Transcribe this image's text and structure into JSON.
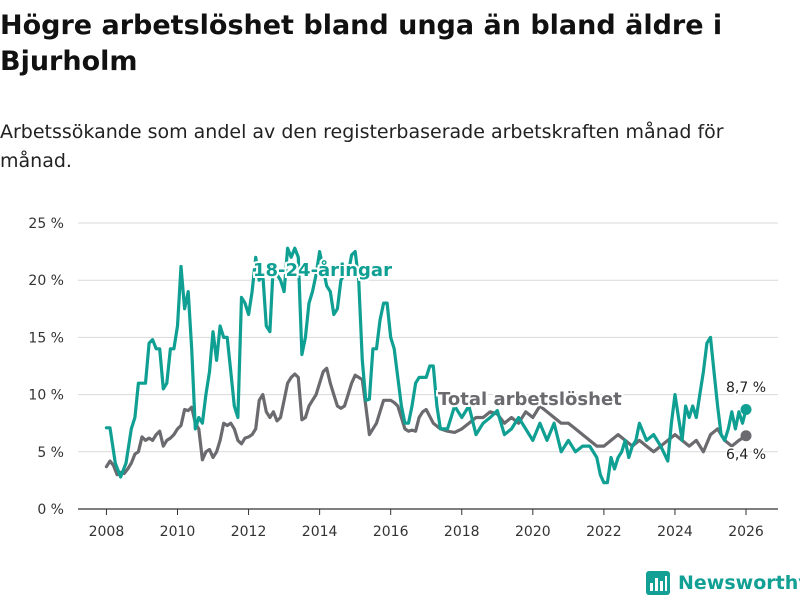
{
  "title": "Högre arbetslöshet bland unga än bland äldre i Bjurholm",
  "subtitle": "Arbetssökande som andel av den registerbaserade arbetskraften månad för månad.",
  "brand": {
    "name": "Newsworthy",
    "icon": "newsworthy-bar-chart-logo"
  },
  "colors": {
    "youth": "#0fa093",
    "total": "#6b6a6f",
    "grid": "#d9d9d9"
  },
  "chart_data": {
    "type": "line",
    "title": "Högre arbetslöshet bland unga än bland äldre i Bjurholm",
    "xlabel": "",
    "ylabel": "",
    "xlim": [
      2007.2,
      2026.9
    ],
    "ylim": [
      0,
      25
    ],
    "y_ticks": [
      0,
      5,
      10,
      15,
      20,
      25
    ],
    "y_tick_labels": [
      "0 %",
      "5 %",
      "10 %",
      "15 %",
      "20 %",
      "25 %"
    ],
    "x_ticks": [
      2008,
      2010,
      2012,
      2014,
      2016,
      2018,
      2020,
      2022,
      2024,
      2026
    ],
    "x_tick_labels": [
      "2008",
      "2010",
      "2012",
      "2014",
      "2016",
      "2018",
      "2020",
      "2022",
      "2024",
      "2026"
    ],
    "grid": "horizontal",
    "series": [
      {
        "name": "18-24-åringar",
        "label": "18-24-åringar",
        "color_key": "youth",
        "x": [
          2008.0,
          2008.1,
          2008.25,
          2008.4,
          2008.55,
          2008.7,
          2008.8,
          2008.9,
          2009.0,
          2009.1,
          2009.2,
          2009.3,
          2009.4,
          2009.5,
          2009.6,
          2009.7,
          2009.8,
          2009.9,
          2010.0,
          2010.1,
          2010.2,
          2010.3,
          2010.4,
          2010.5,
          2010.6,
          2010.7,
          2010.8,
          2010.9,
          2011.0,
          2011.1,
          2011.2,
          2011.3,
          2011.4,
          2011.5,
          2011.6,
          2011.7,
          2011.8,
          2011.9,
          2012.0,
          2012.1,
          2012.2,
          2012.3,
          2012.4,
          2012.5,
          2012.6,
          2012.7,
          2012.8,
          2012.9,
          2013.0,
          2013.1,
          2013.2,
          2013.3,
          2013.4,
          2013.5,
          2013.6,
          2013.7,
          2013.8,
          2013.9,
          2014.0,
          2014.1,
          2014.2,
          2014.3,
          2014.4,
          2014.5,
          2014.6,
          2014.7,
          2014.8,
          2014.9,
          2015.0,
          2015.1,
          2015.2,
          2015.3,
          2015.4,
          2015.5,
          2015.6,
          2015.7,
          2015.8,
          2015.9,
          2016.0,
          2016.1,
          2016.2,
          2016.3,
          2016.4,
          2016.5,
          2016.6,
          2016.7,
          2016.8,
          2016.9,
          2017.0,
          2017.1,
          2017.2,
          2017.3,
          2017.4,
          2017.5,
          2017.6,
          2017.7,
          2017.8,
          2017.9,
          2018.0,
          2018.2,
          2018.4,
          2018.6,
          2018.8,
          2019.0,
          2019.2,
          2019.4,
          2019.6,
          2019.8,
          2020.0,
          2020.2,
          2020.4,
          2020.6,
          2020.8,
          2021.0,
          2021.2,
          2021.4,
          2021.6,
          2021.8,
          2021.9,
          2022.0,
          2022.1,
          2022.2,
          2022.3,
          2022.4,
          2022.5,
          2022.6,
          2022.7,
          2022.8,
          2022.9,
          2023.0,
          2023.2,
          2023.4,
          2023.6,
          2023.8,
          2023.9,
          2024.0,
          2024.1,
          2024.2,
          2024.3,
          2024.4,
          2024.5,
          2024.6,
          2024.7,
          2024.8,
          2024.9,
          2025.0,
          2025.1,
          2025.2,
          2025.3,
          2025.4,
          2025.5,
          2025.6,
          2025.7,
          2025.8,
          2025.9,
          2026.0
        ],
        "values": [
          7.1,
          7.1,
          4.0,
          2.8,
          4.0,
          7.0,
          8.0,
          11.0,
          11.0,
          11.0,
          14.5,
          14.8,
          14.0,
          14.0,
          10.5,
          11.0,
          14.0,
          14.0,
          16.0,
          21.2,
          17.5,
          19.0,
          14.0,
          7.0,
          8.0,
          7.5,
          10.0,
          12.0,
          15.5,
          13.0,
          16.0,
          15.0,
          15.0,
          12.0,
          9.0,
          8.0,
          18.5,
          18.0,
          17.0,
          19.0,
          22.0,
          20.0,
          20.5,
          16.0,
          15.5,
          21.5,
          20.5,
          20.0,
          19.0,
          22.8,
          22.0,
          22.8,
          22.0,
          13.5,
          15.0,
          18.0,
          19.0,
          20.5,
          22.5,
          21.0,
          19.5,
          19.0,
          17.0,
          17.5,
          20.0,
          20.5,
          20.5,
          22.2,
          22.5,
          20.0,
          13.0,
          9.5,
          9.6,
          14.0,
          14.0,
          16.5,
          18.0,
          18.0,
          15.0,
          14.0,
          11.5,
          9.0,
          7.5,
          7.5,
          9.0,
          11.0,
          11.5,
          11.5,
          11.5,
          12.5,
          12.5,
          9.0,
          7.0,
          7.0,
          7.0,
          8.0,
          9.0,
          8.5,
          8.0,
          9.0,
          6.5,
          7.5,
          8.0,
          8.6,
          6.5,
          7.0,
          8.0,
          7.0,
          6.0,
          7.5,
          6.0,
          7.5,
          5.0,
          6.0,
          5.0,
          5.5,
          5.5,
          4.5,
          3.0,
          2.3,
          2.3,
          4.5,
          3.5,
          4.5,
          5.0,
          6.0,
          4.5,
          5.5,
          6.0,
          7.5,
          6.0,
          6.5,
          5.5,
          4.2,
          7.5,
          10.0,
          8.0,
          6.0,
          9.0,
          8.0,
          9.0,
          8.0,
          10.0,
          12.0,
          14.5,
          15.0,
          12.0,
          9.0,
          6.5,
          6.0,
          7.0,
          8.5,
          7.0,
          8.5,
          7.5,
          8.7
        ],
        "end_label": "8,7 %",
        "end_value": 8.7
      },
      {
        "name": "Total arbetslöshet",
        "label": "Total arbetslöshet",
        "color_key": "total",
        "x": [
          2008.0,
          2008.1,
          2008.2,
          2008.3,
          2008.4,
          2008.5,
          2008.6,
          2008.7,
          2008.8,
          2008.9,
          2009.0,
          2009.1,
          2009.2,
          2009.3,
          2009.4,
          2009.5,
          2009.6,
          2009.7,
          2009.8,
          2009.9,
          2010.0,
          2010.1,
          2010.2,
          2010.3,
          2010.4,
          2010.5,
          2010.6,
          2010.7,
          2010.8,
          2010.9,
          2011.0,
          2011.1,
          2011.2,
          2011.3,
          2011.4,
          2011.5,
          2011.6,
          2011.7,
          2011.8,
          2011.9,
          2012.0,
          2012.1,
          2012.2,
          2012.3,
          2012.4,
          2012.5,
          2012.6,
          2012.7,
          2012.8,
          2012.9,
          2013.0,
          2013.1,
          2013.2,
          2013.3,
          2013.4,
          2013.5,
          2013.6,
          2013.7,
          2013.8,
          2013.9,
          2014.0,
          2014.1,
          2014.2,
          2014.3,
          2014.4,
          2014.5,
          2014.6,
          2014.7,
          2014.8,
          2014.9,
          2015.0,
          2015.1,
          2015.2,
          2015.3,
          2015.4,
          2015.5,
          2015.6,
          2015.7,
          2015.8,
          2015.9,
          2016.0,
          2016.1,
          2016.2,
          2016.3,
          2016.4,
          2016.5,
          2016.6,
          2016.7,
          2016.8,
          2016.9,
          2017.0,
          2017.2,
          2017.4,
          2017.6,
          2017.8,
          2018.0,
          2018.2,
          2018.4,
          2018.6,
          2018.8,
          2019.0,
          2019.2,
          2019.4,
          2019.6,
          2019.8,
          2020.0,
          2020.2,
          2020.4,
          2020.6,
          2020.8,
          2021.0,
          2021.2,
          2021.4,
          2021.6,
          2021.8,
          2022.0,
          2022.2,
          2022.4,
          2022.6,
          2022.8,
          2023.0,
          2023.2,
          2023.4,
          2023.6,
          2023.8,
          2024.0,
          2024.2,
          2024.4,
          2024.6,
          2024.8,
          2025.0,
          2025.2,
          2025.4,
          2025.6,
          2025.8,
          2026.0
        ],
        "values": [
          3.7,
          4.2,
          3.8,
          3.0,
          3.2,
          3.1,
          3.5,
          4.0,
          4.8,
          5.0,
          6.3,
          6.0,
          6.2,
          6.0,
          6.5,
          6.8,
          5.5,
          6.0,
          6.2,
          6.5,
          7.0,
          7.3,
          8.7,
          8.6,
          8.9,
          7.5,
          7.0,
          4.3,
          5.0,
          5.2,
          4.5,
          5.0,
          6.0,
          7.5,
          7.3,
          7.5,
          7.0,
          6.0,
          5.7,
          6.2,
          6.3,
          6.5,
          7.0,
          9.5,
          10.0,
          8.5,
          8.0,
          8.5,
          7.7,
          8.0,
          9.5,
          11.0,
          11.5,
          11.8,
          11.5,
          7.8,
          8.0,
          9.0,
          9.5,
          10.0,
          11.0,
          12.0,
          12.3,
          11.0,
          10.0,
          9.0,
          8.8,
          9.0,
          10.0,
          11.0,
          11.7,
          11.5,
          11.3,
          9.0,
          6.5,
          7.0,
          7.5,
          8.5,
          9.5,
          9.5,
          9.5,
          9.3,
          9.0,
          8.0,
          7.0,
          6.8,
          6.9,
          6.8,
          8.0,
          8.5,
          8.7,
          7.5,
          7.0,
          6.8,
          6.7,
          7.0,
          7.5,
          8.0,
          8.0,
          8.5,
          8.3,
          7.5,
          8.0,
          7.5,
          8.5,
          8.0,
          9.0,
          8.5,
          8.0,
          7.5,
          7.5,
          7.0,
          6.5,
          6.0,
          5.5,
          5.5,
          6.0,
          6.5,
          6.0,
          5.5,
          6.0,
          5.5,
          5.0,
          5.5,
          6.0,
          6.5,
          6.0,
          5.5,
          6.0,
          5.0,
          6.5,
          7.0,
          6.0,
          5.5,
          6.0,
          6.4
        ],
        "end_label": "6,4 %",
        "end_value": 6.4
      }
    ]
  }
}
